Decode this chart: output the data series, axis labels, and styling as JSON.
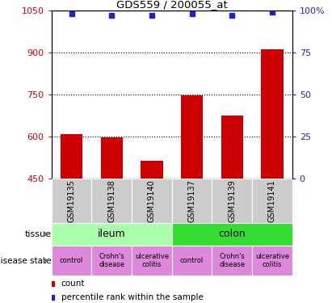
{
  "title": "GDS559 / 200055_at",
  "samples": [
    "GSM19135",
    "GSM19138",
    "GSM19140",
    "GSM19137",
    "GSM19139",
    "GSM19141"
  ],
  "counts": [
    610,
    597,
    513,
    748,
    677,
    912
  ],
  "percentiles": [
    98,
    97,
    97,
    98,
    97,
    99
  ],
  "ylim_left": [
    450,
    1050
  ],
  "ylim_right": [
    0,
    100
  ],
  "yticks_left": [
    450,
    600,
    750,
    900,
    1050
  ],
  "yticks_right": [
    0,
    25,
    50,
    75,
    100
  ],
  "bar_color": "#cc0000",
  "dot_color": "#2222cc",
  "tissue_groups": [
    {
      "label": "ileum",
      "indices": [
        0,
        1,
        2
      ],
      "color": "#aaffaa"
    },
    {
      "label": "colon",
      "indices": [
        3,
        4,
        5
      ],
      "color": "#33dd33"
    }
  ],
  "disease_states": [
    {
      "label": "control",
      "index": 0,
      "color": "#dd88dd"
    },
    {
      "label": "Crohn's\ndisease",
      "index": 1,
      "color": "#dd88dd"
    },
    {
      "label": "ulcerative\ncolitis",
      "index": 2,
      "color": "#dd88dd"
    },
    {
      "label": "control",
      "index": 3,
      "color": "#dd88dd"
    },
    {
      "label": "Crohn's\ndisease",
      "index": 4,
      "color": "#dd88dd"
    },
    {
      "label": "ulcerative\ncolitis",
      "index": 5,
      "color": "#dd88dd"
    }
  ],
  "sample_box_color": "#cccccc",
  "left_label_color": "#cc0000",
  "right_label_color": "#2222cc",
  "legend_count_label": "count",
  "legend_pct_label": "percentile rank within the sample",
  "tissue_label": "tissue",
  "disease_label": "disease state"
}
